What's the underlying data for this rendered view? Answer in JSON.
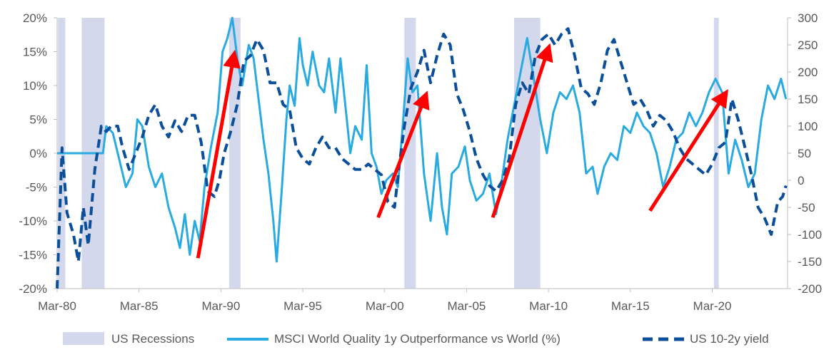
{
  "chart_data": {
    "type": "line",
    "title": "",
    "x_tick_labels": [
      "Mar-80",
      "Mar-85",
      "Mar-90",
      "Mar-95",
      "Mar-00",
      "Mar-05",
      "Mar-10",
      "Mar-15",
      "Mar-20"
    ],
    "x_range": [
      1980.0,
      2024.6
    ],
    "y_left": {
      "ticks": [
        "20%",
        "15%",
        "10%",
        "5%",
        "0%",
        "-5%",
        "-10%",
        "-15%",
        "-20%"
      ],
      "range": [
        -20,
        20
      ]
    },
    "y_right": {
      "ticks": [
        "300",
        "250",
        "200",
        "150",
        "100",
        "50",
        "0",
        "-50",
        "-100",
        "-150",
        "-200"
      ],
      "range": [
        -200,
        300
      ]
    },
    "recessions": [
      [
        1980.05,
        1980.5
      ],
      [
        1981.5,
        1982.9
      ],
      [
        1990.5,
        1991.2
      ],
      [
        2001.2,
        2001.9
      ],
      [
        2007.9,
        2009.5
      ],
      [
        2020.1,
        2020.4
      ]
    ],
    "series": [
      {
        "name": "MSCI World Quality 1y Outperformance vs World (%)",
        "axis": "left",
        "color": "#29abe2",
        "style": "solid",
        "points": [
          [
            1980.0,
            0
          ],
          [
            1981.5,
            0
          ],
          [
            1982.2,
            0
          ],
          [
            1982.8,
            0
          ],
          [
            1983.0,
            4
          ],
          [
            1983.4,
            3
          ],
          [
            1983.8,
            -1
          ],
          [
            1984.2,
            -5
          ],
          [
            1984.6,
            -3
          ],
          [
            1984.9,
            5
          ],
          [
            1985.2,
            4
          ],
          [
            1985.6,
            -2
          ],
          [
            1986.0,
            -5
          ],
          [
            1986.4,
            -3
          ],
          [
            1986.8,
            -8
          ],
          [
            1987.2,
            -11
          ],
          [
            1987.5,
            -14
          ],
          [
            1987.8,
            -9
          ],
          [
            1988.1,
            -15
          ],
          [
            1988.4,
            -10
          ],
          [
            1988.7,
            -13
          ],
          [
            1989.0,
            -5
          ],
          [
            1989.4,
            1
          ],
          [
            1989.8,
            6
          ],
          [
            1990.1,
            15
          ],
          [
            1990.4,
            17
          ],
          [
            1990.7,
            20
          ],
          [
            1991.0,
            14
          ],
          [
            1991.3,
            10
          ],
          [
            1991.7,
            16
          ],
          [
            1992.0,
            14
          ],
          [
            1992.3,
            8
          ],
          [
            1992.6,
            2
          ],
          [
            1992.9,
            -3
          ],
          [
            1993.2,
            -10
          ],
          [
            1993.4,
            -16
          ],
          [
            1993.7,
            -6
          ],
          [
            1994.0,
            5
          ],
          [
            1994.2,
            10
          ],
          [
            1994.5,
            7
          ],
          [
            1994.8,
            17
          ],
          [
            1995.0,
            13
          ],
          [
            1995.3,
            10
          ],
          [
            1995.6,
            15
          ],
          [
            1996.0,
            10
          ],
          [
            1996.3,
            9
          ],
          [
            1996.6,
            14
          ],
          [
            1997.0,
            6
          ],
          [
            1997.3,
            14
          ],
          [
            1997.6,
            7
          ],
          [
            1997.9,
            0
          ],
          [
            1998.2,
            4
          ],
          [
            1998.6,
            2
          ],
          [
            1998.9,
            13
          ],
          [
            1999.2,
            0
          ],
          [
            1999.5,
            -2
          ],
          [
            1999.8,
            -6
          ],
          [
            2000.1,
            -4
          ],
          [
            2000.5,
            -3
          ],
          [
            2000.8,
            -5
          ],
          [
            2001.1,
            4
          ],
          [
            2001.4,
            14
          ],
          [
            2001.7,
            9
          ],
          [
            2002.0,
            10
          ],
          [
            2002.4,
            -3
          ],
          [
            2002.8,
            -10
          ],
          [
            2003.2,
            0
          ],
          [
            2003.5,
            -8
          ],
          [
            2003.8,
            -12
          ],
          [
            2004.1,
            -3
          ],
          [
            2004.5,
            -2
          ],
          [
            2004.9,
            1
          ],
          [
            2005.2,
            -4
          ],
          [
            2005.6,
            -7
          ],
          [
            2006.0,
            -6
          ],
          [
            2006.4,
            -3
          ],
          [
            2006.8,
            -9
          ],
          [
            2007.1,
            -5
          ],
          [
            2007.5,
            2
          ],
          [
            2007.9,
            7
          ],
          [
            2008.3,
            12
          ],
          [
            2008.7,
            17
          ],
          [
            2009.1,
            11
          ],
          [
            2009.5,
            5
          ],
          [
            2009.9,
            0
          ],
          [
            2010.3,
            6
          ],
          [
            2010.7,
            9
          ],
          [
            2011.1,
            8
          ],
          [
            2011.5,
            10
          ],
          [
            2011.9,
            6
          ],
          [
            2012.3,
            -3
          ],
          [
            2012.7,
            -2
          ],
          [
            2013.0,
            -6
          ],
          [
            2013.4,
            -2
          ],
          [
            2013.8,
            0
          ],
          [
            2014.2,
            -1
          ],
          [
            2014.6,
            4
          ],
          [
            2015.0,
            3
          ],
          [
            2015.4,
            6
          ],
          [
            2015.8,
            4
          ],
          [
            2016.2,
            3
          ],
          [
            2016.6,
            0
          ],
          [
            2017.0,
            -5
          ],
          [
            2017.4,
            -2
          ],
          [
            2017.8,
            2
          ],
          [
            2018.2,
            3
          ],
          [
            2018.6,
            6
          ],
          [
            2019.0,
            4
          ],
          [
            2019.4,
            6
          ],
          [
            2019.8,
            9
          ],
          [
            2020.2,
            11
          ],
          [
            2020.6,
            9
          ],
          [
            2021.0,
            -3
          ],
          [
            2021.4,
            2
          ],
          [
            2021.8,
            -1
          ],
          [
            2022.2,
            -5
          ],
          [
            2022.6,
            -3
          ],
          [
            2023.0,
            5
          ],
          [
            2023.4,
            10
          ],
          [
            2023.8,
            8
          ],
          [
            2024.2,
            11
          ],
          [
            2024.5,
            8
          ]
        ]
      },
      {
        "name": "US 10-2y yield",
        "axis": "right",
        "color": "#0b4f9b",
        "style": "dashed",
        "points": [
          [
            1980.0,
            -200
          ],
          [
            1980.3,
            60
          ],
          [
            1980.6,
            -60
          ],
          [
            1981.0,
            -100
          ],
          [
            1981.3,
            -150
          ],
          [
            1981.6,
            -50
          ],
          [
            1981.9,
            -120
          ],
          [
            1982.3,
            20
          ],
          [
            1982.7,
            100
          ],
          [
            1983.0,
            90
          ],
          [
            1983.3,
            100
          ],
          [
            1983.7,
            100
          ],
          [
            1984.0,
            60
          ],
          [
            1984.4,
            20
          ],
          [
            1984.8,
            50
          ],
          [
            1985.2,
            80
          ],
          [
            1985.6,
            120
          ],
          [
            1986.0,
            140
          ],
          [
            1986.4,
            100
          ],
          [
            1986.8,
            80
          ],
          [
            1987.2,
            110
          ],
          [
            1987.6,
            90
          ],
          [
            1988.0,
            120
          ],
          [
            1988.4,
            120
          ],
          [
            1988.8,
            70
          ],
          [
            1989.2,
            -20
          ],
          [
            1989.6,
            -30
          ],
          [
            1989.9,
            0
          ],
          [
            1990.2,
            50
          ],
          [
            1990.6,
            90
          ],
          [
            1991.0,
            140
          ],
          [
            1991.4,
            220
          ],
          [
            1991.8,
            230
          ],
          [
            1992.2,
            260
          ],
          [
            1992.6,
            240
          ],
          [
            1993.0,
            180
          ],
          [
            1993.4,
            180
          ],
          [
            1993.8,
            140
          ],
          [
            1994.2,
            130
          ],
          [
            1994.6,
            60
          ],
          [
            1995.0,
            40
          ],
          [
            1995.4,
            30
          ],
          [
            1995.8,
            60
          ],
          [
            1996.2,
            80
          ],
          [
            1996.6,
            60
          ],
          [
            1997.0,
            60
          ],
          [
            1997.4,
            40
          ],
          [
            1997.8,
            30
          ],
          [
            1998.2,
            20
          ],
          [
            1998.6,
            20
          ],
          [
            1999.0,
            30
          ],
          [
            1999.4,
            20
          ],
          [
            1999.8,
            10
          ],
          [
            2000.2,
            -40
          ],
          [
            2000.6,
            -50
          ],
          [
            2000.9,
            30
          ],
          [
            2001.2,
            100
          ],
          [
            2001.6,
            170
          ],
          [
            2002.0,
            200
          ],
          [
            2002.4,
            240
          ],
          [
            2002.8,
            180
          ],
          [
            2003.2,
            230
          ],
          [
            2003.6,
            270
          ],
          [
            2004.0,
            250
          ],
          [
            2004.4,
            160
          ],
          [
            2004.8,
            130
          ],
          [
            2005.2,
            90
          ],
          [
            2005.6,
            40
          ],
          [
            2006.0,
            10
          ],
          [
            2006.4,
            -10
          ],
          [
            2006.8,
            -20
          ],
          [
            2007.2,
            0
          ],
          [
            2007.6,
            40
          ],
          [
            2008.0,
            140
          ],
          [
            2008.4,
            180
          ],
          [
            2008.8,
            160
          ],
          [
            2009.2,
            230
          ],
          [
            2009.6,
            260
          ],
          [
            2010.0,
            270
          ],
          [
            2010.4,
            250
          ],
          [
            2010.8,
            270
          ],
          [
            2011.2,
            280
          ],
          [
            2011.6,
            230
          ],
          [
            2012.0,
            170
          ],
          [
            2012.4,
            160
          ],
          [
            2012.8,
            140
          ],
          [
            2013.2,
            180
          ],
          [
            2013.6,
            240
          ],
          [
            2014.0,
            260
          ],
          [
            2014.4,
            220
          ],
          [
            2014.8,
            180
          ],
          [
            2015.2,
            140
          ],
          [
            2015.6,
            150
          ],
          [
            2016.0,
            130
          ],
          [
            2016.4,
            100
          ],
          [
            2016.8,
            120
          ],
          [
            2017.2,
            110
          ],
          [
            2017.6,
            90
          ],
          [
            2018.0,
            60
          ],
          [
            2018.4,
            40
          ],
          [
            2018.8,
            30
          ],
          [
            2019.2,
            20
          ],
          [
            2019.6,
            10
          ],
          [
            2020.0,
            30
          ],
          [
            2020.4,
            60
          ],
          [
            2020.8,
            70
          ],
          [
            2021.2,
            150
          ],
          [
            2021.6,
            110
          ],
          [
            2022.0,
            60
          ],
          [
            2022.4,
            10
          ],
          [
            2022.8,
            -50
          ],
          [
            2023.2,
            -70
          ],
          [
            2023.6,
            -100
          ],
          [
            2024.0,
            -40
          ],
          [
            2024.3,
            -30
          ],
          [
            2024.5,
            -10
          ]
        ]
      }
    ],
    "annotations": [
      {
        "type": "arrow",
        "color": "#ff0000",
        "from": [
          1988.6,
          -15.5
        ],
        "to": [
          1990.8,
          14.5
        ]
      },
      {
        "type": "arrow",
        "color": "#ff0000",
        "from": [
          1999.6,
          -9.5
        ],
        "to": [
          2002.5,
          8.5
        ]
      },
      {
        "type": "arrow",
        "color": "#ff0000",
        "from": [
          2006.6,
          -9.5
        ],
        "to": [
          2010.0,
          15.5
        ]
      },
      {
        "type": "arrow",
        "color": "#ff0000",
        "from": [
          2016.2,
          -8.5
        ],
        "to": [
          2020.8,
          8.8
        ]
      }
    ],
    "legend": {
      "position": "bottom",
      "items": [
        {
          "label": "US Recessions",
          "kind": "patch",
          "color": "#d4d8ec"
        },
        {
          "label": "MSCI World Quality 1y Outperformance vs World (%)",
          "kind": "solid",
          "color": "#29abe2"
        },
        {
          "label": "US 10-2y yield",
          "kind": "dashed",
          "color": "#0b4f9b"
        }
      ]
    }
  }
}
